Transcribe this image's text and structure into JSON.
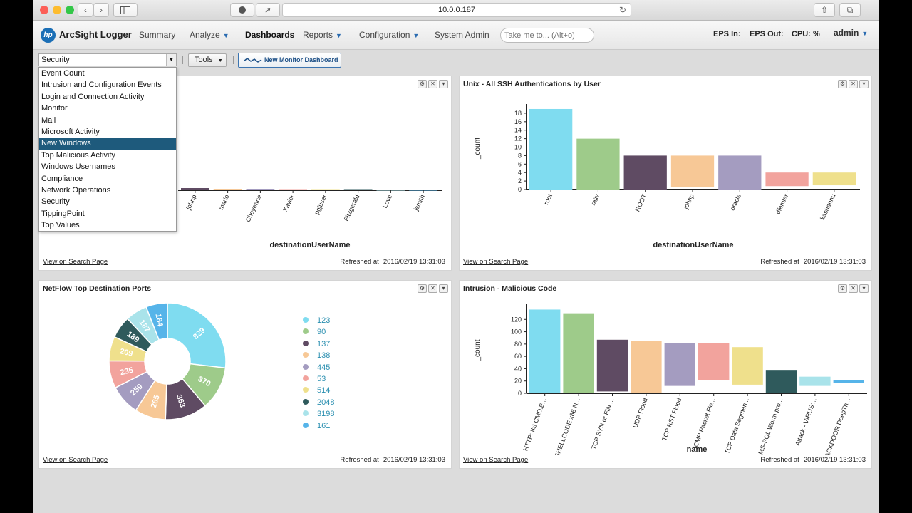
{
  "browser": {
    "url": "10.0.0.187"
  },
  "app": {
    "logo_mark": "hp",
    "name": "ArcSight Logger",
    "nav": [
      {
        "label": "Summary",
        "chevron": false,
        "active": false
      },
      {
        "label": "Analyze",
        "chevron": true,
        "active": false
      },
      {
        "label": "Dashboards",
        "chevron": false,
        "active": true
      },
      {
        "label": "Reports",
        "chevron": true,
        "active": false
      },
      {
        "label": "Configuration",
        "chevron": true,
        "active": false
      },
      {
        "label": "System Admin",
        "chevron": false,
        "active": false
      }
    ],
    "search_placeholder": "Take me to... (Alt+o)",
    "eps_in": "EPS In:",
    "eps_out": "EPS Out:",
    "cpu": "CPU: %",
    "user": "admin"
  },
  "toolbar": {
    "dashboard_select": "Security",
    "tools_label": "Tools",
    "new_monitor_label": "New Monitor Dashboard"
  },
  "dashboard_menu": {
    "items": [
      "Event Count",
      "Intrusion and Configuration Events",
      "Login and Connection Activity",
      "Monitor",
      "Mail",
      "Microsoft Activity",
      "New Windows",
      "Top Malicious Activity",
      "Windows Usernames",
      "Compliance",
      "Network Operations",
      "Security",
      "TippingPoint",
      "Top Values"
    ],
    "selected": "New Windows"
  },
  "panels": {
    "top_left": {
      "title": "",
      "link": "View on Search Page",
      "refreshed_label": "Refreshed at",
      "refreshed_time": "2016/02/19 13:31:03"
    },
    "top_right": {
      "title": "Unix - All SSH Authentications by User",
      "link": "View on Search Page",
      "refreshed_label": "Refreshed at",
      "refreshed_time": "2016/02/19 13:31:03"
    },
    "bottom_left": {
      "title": "NetFlow Top Destination Ports",
      "link": "View on Search Page",
      "refreshed_label": "Refreshed at",
      "refreshed_time": "2016/02/19 13:31:03"
    },
    "bottom_right": {
      "title": "Intrusion - Malicious Code",
      "link": "View on Search Page",
      "refreshed_label": "Refreshed at",
      "refreshed_time": "2016/02/19 13:31:03"
    }
  },
  "chart_data": [
    {
      "type": "bar",
      "id": "top_left",
      "categories": [
        "johnp",
        "mario",
        "Cheyenne",
        "Xavier",
        "pgjuser",
        "Fitzgerald",
        "Love",
        "jsmith"
      ],
      "values": [
        0.6,
        0.4,
        0.4,
        0.3,
        0.3,
        0.3,
        0.2,
        0.2
      ],
      "colors": [
        "#5f4b63",
        "#f5c898",
        "#a49cc0",
        "#f2a39d",
        "#efe08c",
        "#2f5a5c",
        "#a9e3ea",
        "#56b4e9"
      ],
      "xlabel": "destinationUserName",
      "ylim": [
        0,
        20
      ]
    },
    {
      "type": "bar",
      "id": "top_right",
      "categories": [
        "root",
        "rajiv",
        "ROOT",
        "johnp",
        "oracle",
        "dfemler",
        "kashannu"
      ],
      "values": [
        19,
        12,
        8,
        8,
        8,
        4,
        4
      ],
      "bases": [
        0,
        0,
        0,
        0.5,
        0,
        0.8,
        1
      ],
      "colors": [
        "#7fdcf0",
        "#9ecb8a",
        "#5f4b63",
        "#f7c896",
        "#a49cc0",
        "#f2a39d",
        "#efe08c"
      ],
      "yticks": [
        0,
        2,
        4,
        6,
        8,
        10,
        12,
        14,
        16,
        18
      ],
      "ylim": [
        0,
        19.5
      ],
      "xlabel": "destinationUserName",
      "ylabel": "_count"
    },
    {
      "type": "pie",
      "id": "bottom_left",
      "series": [
        {
          "name": "123",
          "value": 829,
          "color": "#7fdcf0"
        },
        {
          "name": "90",
          "value": 370,
          "color": "#9ecb8a"
        },
        {
          "name": "137",
          "value": 363,
          "color": "#5f4b63"
        },
        {
          "name": "138",
          "value": 265,
          "color": "#f7c896"
        },
        {
          "name": "445",
          "value": 259,
          "color": "#a49cc0"
        },
        {
          "name": "53",
          "value": 235,
          "color": "#f2a39d"
        },
        {
          "name": "514",
          "value": 209,
          "color": "#efe08c"
        },
        {
          "name": "2048",
          "value": 189,
          "color": "#2f5a5c"
        },
        {
          "name": "3198",
          "value": 187,
          "color": "#a9e3ea"
        },
        {
          "name": "161",
          "value": 184,
          "color": "#56b4e9"
        }
      ]
    },
    {
      "type": "bar",
      "id": "bottom_right",
      "categories": [
        "HTTP: IIS CMD.E...",
        "SHELLCODE x86 N...",
        "TCP SYN or FIN ...",
        "UDP Flood",
        "TCP RST Flood",
        "ICMP Packet Flo...",
        "TCP Data Segmen...",
        "MS-SQL Worm pro...",
        "Attack - VIRUS:...",
        "BACKDOOR DeepTh..."
      ],
      "values": [
        136,
        130,
        87,
        85,
        82,
        81,
        75,
        38,
        27,
        21
      ],
      "bases": [
        0,
        0,
        3,
        0,
        12,
        21,
        14,
        0,
        12,
        17
      ],
      "colors": [
        "#7fdcf0",
        "#9ecb8a",
        "#5f4b63",
        "#f7c896",
        "#a49cc0",
        "#f2a39d",
        "#efe08c",
        "#2f5a5c",
        "#a9e3ea",
        "#56b4e9"
      ],
      "yticks": [
        0,
        20,
        40,
        60,
        80,
        100,
        120
      ],
      "ylim": [
        0,
        140
      ],
      "xlabel": "name",
      "ylabel": "_count"
    }
  ]
}
